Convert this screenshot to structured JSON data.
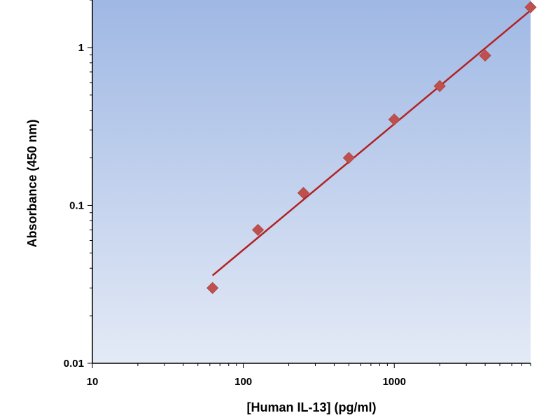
{
  "chart_data": {
    "type": "scatter",
    "title": "",
    "xlabel": "[Human IL-13] (pg/ml)",
    "ylabel": "Absorbance (450 nm)",
    "xscale": "log",
    "yscale": "log",
    "xlim": [
      10,
      8000
    ],
    "ylim": [
      0.01,
      2
    ],
    "grid": false,
    "legend": "none",
    "x_tick_labels": [
      "10",
      "100",
      "1000"
    ],
    "y_tick_labels": [
      "0.01",
      "0.1",
      "1"
    ],
    "series": [
      {
        "type": "scatter",
        "x": [
          62.5,
          125,
          250,
          500,
          1000,
          2000,
          4000,
          8000
        ],
        "y": [
          0.03,
          0.07,
          0.12,
          0.2,
          0.35,
          0.57,
          0.89,
          1.8
        ]
      },
      {
        "type": "line",
        "x": [
          62.5,
          8000
        ],
        "y": [
          0.036,
          1.72
        ]
      }
    ],
    "colors": {
      "marker": "#c0504d",
      "fit_line": "#b22222",
      "plot_bg_top": "#9fb8e4",
      "plot_bg_bottom": "#e4eaf6"
    }
  }
}
